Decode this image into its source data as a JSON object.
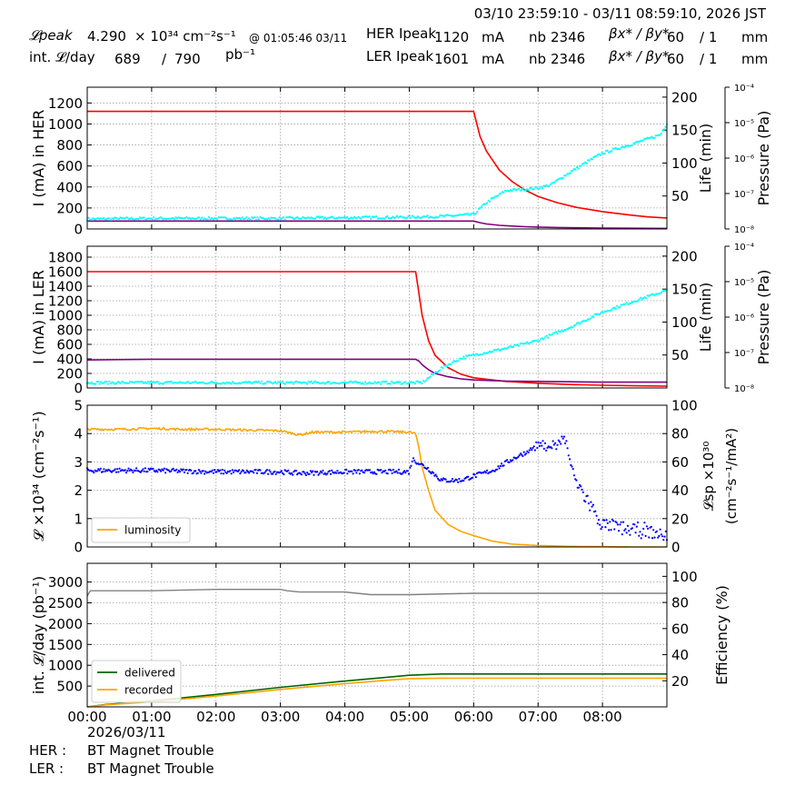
{
  "header": {
    "time_range": "03/10 23:59:10 - 03/11 08:59:10, 2026 JST",
    "lpeak_label": "𝓛peak",
    "lpeak_value": "4.290",
    "lpeak_unit": "× 10³⁴ cm⁻²s⁻¹",
    "lpeak_time": "@ 01:05:46 03/11",
    "intl_label": "int. 𝓛/day",
    "intl_value": "689",
    "intl_sep": "/",
    "intl_total": "790",
    "intl_unit": "pb⁻¹",
    "her_label": "HER Ipeak",
    "her_current": "1120",
    "her_unit": "mA",
    "her_nb_label": "nb",
    "her_nb": "2346",
    "her_beta_label": "βx* / βy*",
    "her_beta_x": "60",
    "her_beta_y": "/ 1",
    "her_beta_unit": "mm",
    "ler_label": "LER Ipeak",
    "ler_current": "1601",
    "ler_unit": "mA",
    "ler_nb_label": "nb",
    "ler_nb": "2346",
    "ler_beta_label": "βx* / βy*",
    "ler_beta_x": "60",
    "ler_beta_y": "/ 1",
    "ler_beta_unit": "mm"
  },
  "footer": {
    "date": "2026/03/11",
    "her_label": "HER :",
    "her_status": "BT Magnet Trouble",
    "ler_label": "LER :",
    "ler_status": "BT Magnet Trouble"
  },
  "colors": {
    "current": "#ff0000",
    "pressure": "#800080",
    "life": "#00ffff",
    "luminosity": "#ffa500",
    "specific": "#0000ff",
    "delivered": "#006400",
    "recorded": "#ffa500",
    "efficiency": "#808080",
    "grid": "#9e9e9e"
  },
  "chart_data": [
    {
      "type": "line",
      "panel": "her",
      "ylabel": "I (mA) in HER",
      "ylim": [
        0,
        1350
      ],
      "yticks": [
        0,
        200,
        400,
        600,
        800,
        1000,
        1200
      ],
      "y2label": "Life (min)",
      "y2lim": [
        0,
        215
      ],
      "y2ticks": [
        50,
        100,
        150,
        200
      ],
      "y3label": "Pressure (Pa)",
      "y3scale": "log",
      "y3lim": [
        1e-08,
        0.0001
      ],
      "y3ticks": [
        "10⁻⁸",
        "10⁻⁷",
        "10⁻⁶",
        "10⁻⁵",
        "10⁻⁴"
      ],
      "x": [
        0,
        1,
        2,
        3,
        4,
        5,
        6,
        6.1,
        6.2,
        6.4,
        6.6,
        6.8,
        7,
        7.3,
        7.6,
        8,
        8.4,
        8.7,
        9
      ],
      "series": [
        {
          "role": "current",
          "axis": "left",
          "values": [
            1120,
            1120,
            1120,
            1120,
            1120,
            1120,
            1120,
            880,
            740,
            560,
            450,
            370,
            310,
            250,
            205,
            165,
            135,
            115,
            105
          ]
        },
        {
          "role": "pressure",
          "axis": "left",
          "values": [
            75,
            75,
            75,
            75,
            75,
            75,
            75,
            60,
            48,
            35,
            28,
            22,
            18,
            14,
            11,
            9,
            7,
            6,
            5
          ]
        },
        {
          "role": "life",
          "axis": "right",
          "x": [
            0,
            1,
            2,
            3,
            4,
            5,
            5.5,
            6,
            6.2,
            6.5,
            7,
            7.2,
            7.4,
            7.8,
            8,
            8.5,
            8.9,
            9
          ],
          "values": [
            15,
            16,
            16,
            16,
            17,
            18,
            19,
            22,
            40,
            58,
            62,
            67,
            80,
            104,
            115,
            130,
            143,
            160
          ]
        }
      ]
    },
    {
      "type": "line",
      "panel": "ler",
      "ylabel": "I (mA) in LER",
      "ylim": [
        0,
        1950
      ],
      "yticks": [
        0,
        200,
        400,
        600,
        800,
        1000,
        1200,
        1400,
        1600,
        1800
      ],
      "y2label": "Life (min)",
      "y2lim": [
        0,
        215
      ],
      "y2ticks": [
        50,
        100,
        150,
        200
      ],
      "y3label": "Pressure (Pa)",
      "y3scale": "log",
      "y3lim": [
        1e-08,
        0.0001
      ],
      "y3ticks": [
        "10⁻⁸",
        "10⁻⁷",
        "10⁻⁶",
        "10⁻⁵",
        "10⁻⁴"
      ],
      "x": [
        0,
        1,
        2,
        3,
        4,
        5.1,
        5.15,
        5.2,
        5.3,
        5.4,
        5.6,
        5.8,
        6,
        6.5,
        7,
        7.5,
        8,
        8.5,
        9
      ],
      "series": [
        {
          "role": "current",
          "axis": "left",
          "values": [
            1600,
            1600,
            1600,
            1600,
            1600,
            1600,
            1300,
            1000,
            650,
            450,
            280,
            190,
            140,
            90,
            65,
            48,
            38,
            30,
            25
          ]
        },
        {
          "role": "pressure",
          "axis": "left",
          "values": [
            385,
            395,
            395,
            395,
            395,
            395,
            370,
            320,
            250,
            200,
            155,
            125,
            110,
            95,
            90,
            85,
            80,
            80,
            80
          ]
        },
        {
          "role": "life",
          "axis": "right",
          "x": [
            0,
            1,
            2,
            3,
            4,
            5,
            5.2,
            5.5,
            5.8,
            6,
            6.5,
            7,
            7.5,
            8,
            8.5,
            9
          ],
          "values": [
            8,
            8,
            8,
            8,
            8,
            8,
            8,
            30,
            45,
            50,
            60,
            72,
            92,
            115,
            132,
            148
          ]
        }
      ]
    },
    {
      "type": "line",
      "panel": "luminosity",
      "ylabel": "𝓛 ×10³⁴ (cm⁻²s⁻¹)",
      "ylim": [
        0,
        5
      ],
      "yticks": [
        0,
        1,
        2,
        3,
        4,
        5
      ],
      "y2label": "𝓛sp ×10³⁰ (cm⁻²s⁻¹/mA²)",
      "y2lim": [
        0,
        100
      ],
      "y2ticks": [
        0,
        20,
        40,
        60,
        80,
        100
      ],
      "legend": [
        "luminosity"
      ],
      "legend_loc": "lower-left",
      "x": [
        0,
        0.5,
        1,
        1.5,
        2,
        2.5,
        3,
        3.3,
        3.5,
        4,
        4.5,
        5,
        5.1,
        5.15,
        5.2,
        5.3,
        5.4,
        5.6,
        5.8,
        6,
        6.3,
        6.6,
        7,
        7.5,
        8,
        8.5,
        9
      ],
      "series": [
        {
          "role": "luminosity",
          "name": "luminosity",
          "axis": "left",
          "values": [
            4.15,
            4.15,
            4.18,
            4.15,
            4.15,
            4.12,
            4.1,
            3.95,
            4.05,
            4.05,
            4.08,
            4.05,
            4.0,
            3.5,
            2.8,
            2.0,
            1.3,
            0.8,
            0.55,
            0.4,
            0.2,
            0.1,
            0.05,
            0.02,
            0.01,
            0.0,
            0.0
          ]
        },
        {
          "role": "specific",
          "axis": "right",
          "x": [
            0,
            1,
            2,
            3,
            3.3,
            4,
            5,
            5.05,
            5.3,
            5.5,
            5.8,
            6,
            6.3,
            6.6,
            7,
            7.3,
            7.4,
            7.5,
            7.6,
            7.8,
            8,
            8.5,
            9
          ],
          "values": [
            54,
            54,
            53,
            53,
            52,
            53,
            53,
            62,
            55,
            47,
            47,
            50,
            54,
            62,
            71,
            72,
            78,
            60,
            45,
            30,
            15,
            12,
            8
          ]
        }
      ]
    },
    {
      "type": "line",
      "panel": "integrated",
      "ylabel": "int. 𝓛/day (pb⁻¹)",
      "ylim": [
        0,
        3450
      ],
      "yticks": [
        500,
        1000,
        1500,
        2000,
        2500,
        3000
      ],
      "y2label": "Efficiency (%)",
      "y2lim": [
        0,
        110
      ],
      "y2ticks": [
        20,
        40,
        60,
        80,
        100
      ],
      "xlabel": "",
      "xticks": [
        "00:00",
        "01:00",
        "02:00",
        "03:00",
        "04:00",
        "05:00",
        "06:00",
        "07:00",
        "08:00"
      ],
      "xlim": [
        0,
        9
      ],
      "legend": [
        "delivered",
        "recorded"
      ],
      "legend_loc": "lower-left",
      "x": [
        0,
        0.3,
        1,
        2,
        3,
        4,
        4.5,
        5,
        5.5,
        6,
        7,
        8,
        9
      ],
      "series": [
        {
          "role": "delivered",
          "name": "delivered",
          "axis": "left",
          "values": [
            0,
            60,
            140,
            300,
            470,
            620,
            690,
            760,
            790,
            790,
            790,
            790,
            790
          ]
        },
        {
          "role": "recorded",
          "name": "recorded",
          "axis": "left",
          "values": [
            0,
            50,
            120,
            260,
            420,
            560,
            620,
            680,
            690,
            690,
            690,
            690,
            689
          ]
        },
        {
          "role": "efficiency",
          "axis": "right",
          "x": [
            0,
            0.05,
            1,
            2,
            3,
            3.1,
            3.3,
            4,
            4.4,
            5,
            6,
            7,
            8,
            9
          ],
          "values": [
            85,
            89,
            89,
            90,
            90,
            89,
            88,
            88,
            86,
            86,
            87,
            87,
            87,
            87
          ]
        }
      ]
    }
  ]
}
